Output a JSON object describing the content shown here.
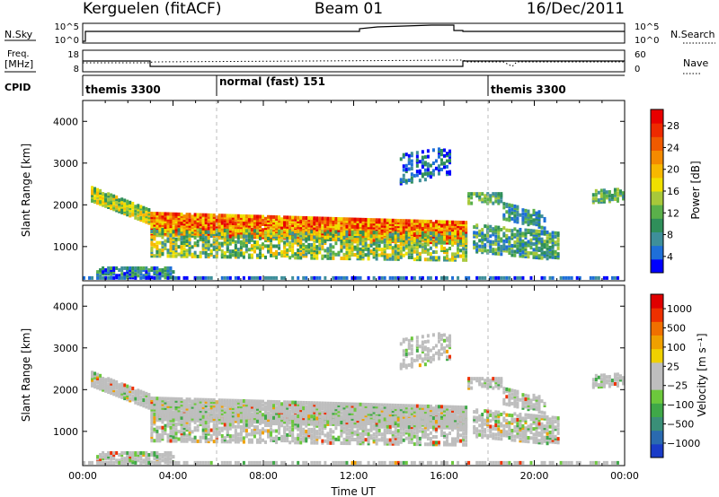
{
  "header": {
    "station": "Kerguelen (fitACF)",
    "beam": "Beam 01",
    "date": "16/Dec/2011"
  },
  "strip_panels": {
    "nsky": {
      "label": "N.Sky",
      "ticks": [
        "10^5",
        "10^0"
      ],
      "right_ticks": [
        "10^5",
        "10^0"
      ],
      "right_label": "N.Search"
    },
    "freq": {
      "label_line1": "Freq.",
      "label_line2": "[MHz]",
      "ticks": [
        "18",
        "8"
      ],
      "right_ticks": [
        "60",
        "0"
      ],
      "right_label": "Nave"
    },
    "cpid": {
      "label": "CPID",
      "segments": [
        {
          "name": "themis 3300",
          "start_hour": 0,
          "end_hour": 6
        },
        {
          "name": "normal (fast) 151",
          "start_hour": 6,
          "end_hour": 18
        },
        {
          "name": "themis 3300",
          "start_hour": 18,
          "end_hour": 24
        }
      ]
    }
  },
  "chart_data": [
    {
      "type": "heatmap",
      "ylabel": "Slant Range [km]",
      "xlabel": "",
      "xlim": [
        0,
        24
      ],
      "ylim": [
        180,
        4500
      ],
      "yticks": [
        1000,
        2000,
        3000,
        4000
      ],
      "colorbar": {
        "label": "Power [dB]",
        "ticks": [
          "28",
          "24",
          "20",
          "16",
          "12",
          "8",
          "4"
        ],
        "range": [
          0,
          30
        ],
        "colors": [
          "#0000ff",
          "#1e6fd8",
          "#3e8f9a",
          "#2f8f5a",
          "#5ab04a",
          "#a8c83a",
          "#f0e000",
          "#f7b800",
          "#f48a00",
          "#f05a00",
          "#ee2a00",
          "#e80000"
        ]
      }
    },
    {
      "type": "heatmap",
      "ylabel": "Slant Range [km]",
      "xlabel": "Time UT",
      "xlim": [
        0,
        24
      ],
      "ylim": [
        180,
        4500
      ],
      "yticks": [
        1000,
        2000,
        3000,
        4000
      ],
      "xticks": [
        "00:00",
        "04:00",
        "08:00",
        "12:00",
        "16:00",
        "20:00",
        "00:00"
      ],
      "colorbar": {
        "label": "Velocity [m s⁻¹]",
        "ticks": [
          "1000",
          "500",
          "100",
          "25",
          "−25",
          "−100",
          "−500",
          "−1000"
        ],
        "range": [
          -1200,
          1200
        ],
        "colors": [
          "#1a3cc8",
          "#2a6ab0",
          "#3a8f78",
          "#3fa848",
          "#6cc83c",
          "#bebebe",
          "#bebebe",
          "#f0d000",
          "#f0a000",
          "#f07000",
          "#ee3000",
          "#e00000"
        ]
      }
    }
  ]
}
